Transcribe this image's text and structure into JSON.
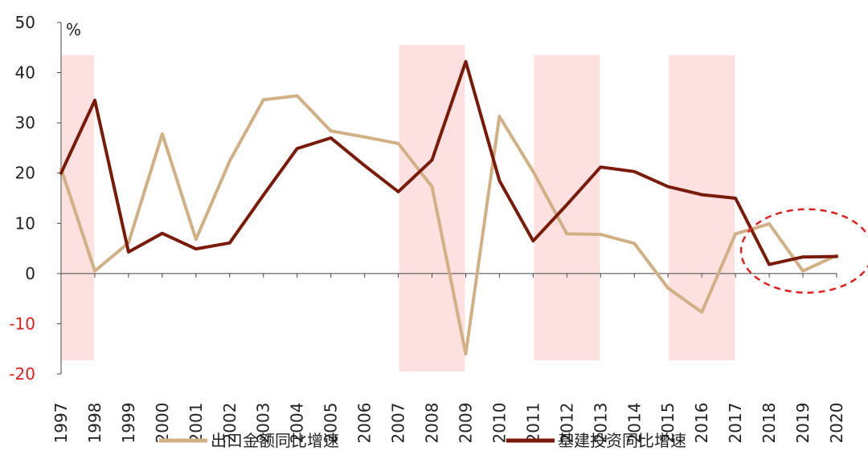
{
  "chart_data": {
    "type": "line",
    "ylabel": "%",
    "ylim": [
      -20,
      50
    ],
    "yticks": [
      50,
      40,
      30,
      20,
      10,
      0,
      -10,
      -20
    ],
    "x": [
      "1997",
      "1998",
      "1999",
      "2000",
      "2001",
      "2002",
      "2003",
      "2004",
      "2005",
      "2006",
      "2007",
      "2008",
      "2009",
      "2010",
      "2011",
      "2012",
      "2013",
      "2014",
      "2015",
      "2016",
      "2017",
      "2018",
      "2019",
      "2020"
    ],
    "series": [
      {
        "name": "出口金额同比增速",
        "color": "#d2b085",
        "values": [
          20.9,
          0.5,
          6.1,
          27.8,
          6.8,
          22.4,
          34.6,
          35.4,
          28.4,
          27.2,
          25.9,
          17.3,
          -16.0,
          31.3,
          20.3,
          7.9,
          7.8,
          6.0,
          -2.9,
          -7.7,
          7.9,
          9.9,
          0.5,
          3.6
        ]
      },
      {
        "name": "基建投资同比增速",
        "color": "#7a1a08",
        "values": [
          20.0,
          34.5,
          4.3,
          8.0,
          4.9,
          6.1,
          15.6,
          24.9,
          27.0,
          21.5,
          16.3,
          22.6,
          42.2,
          18.5,
          6.5,
          13.7,
          21.2,
          20.3,
          17.3,
          15.7,
          15.0,
          1.8,
          3.3,
          3.4
        ]
      }
    ],
    "shaded_periods": [
      {
        "from": "1997",
        "to": "1998",
        "color": "#fde0e0"
      },
      {
        "from": "2007",
        "to": "2009",
        "color": "#fde0e0"
      },
      {
        "from": "2011",
        "to": "2013",
        "color": "#fde0e0"
      },
      {
        "from": "2015",
        "to": "2017",
        "color": "#fde0e0"
      }
    ],
    "annotation": {
      "type": "dashed-ellipse",
      "color": "#e02020",
      "around": [
        "2018",
        "2020"
      ]
    }
  }
}
